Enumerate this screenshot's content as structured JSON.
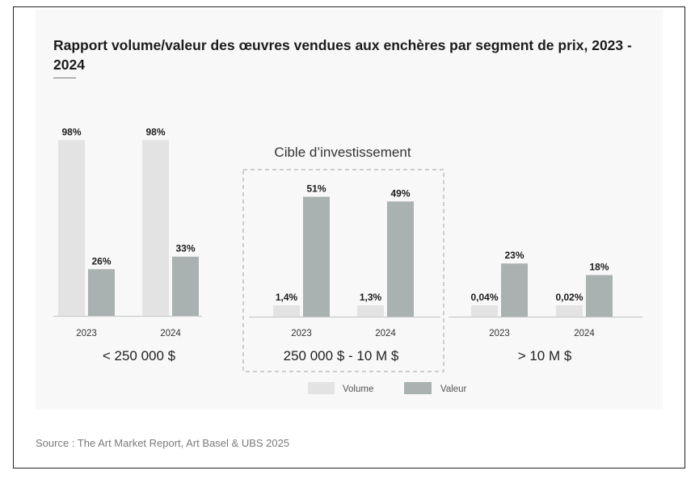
{
  "source": "Source : The Art Market Report, Art Basel & UBS 2025",
  "colors": {
    "volume": "#e3e3e3",
    "valeur": "#a9b1b1",
    "axis": "#c9cccc",
    "text": "#1c1c1c",
    "dashed_box": "#b3b3b3"
  },
  "chart_data": {
    "type": "bar",
    "title": "Rapport volume/valeur des œuvres vendues aux enchères par segment de prix, 2023 - 2024",
    "series_names": [
      "Volume",
      "Valeur"
    ],
    "highlight_label": "Cible d’investissement",
    "groups": [
      {
        "label": "< 250 000 $",
        "years": [
          {
            "year": "2023",
            "volume": 98,
            "volume_label": "98%",
            "valeur": 26,
            "valeur_label": "26%"
          },
          {
            "year": "2024",
            "volume": 98,
            "volume_label": "98%",
            "valeur": 33,
            "valeur_label": "33%"
          }
        ]
      },
      {
        "label": "250 000 $ - 10 M $",
        "highlighted": true,
        "years": [
          {
            "year": "2023",
            "volume": 1.4,
            "volume_label": "1,4%",
            "valeur": 51,
            "valeur_label": "51%"
          },
          {
            "year": "2024",
            "volume": 1.3,
            "volume_label": "1,3%",
            "valeur": 49,
            "valeur_label": "49%"
          }
        ]
      },
      {
        "label": "> 10 M $",
        "years": [
          {
            "year": "2023",
            "volume": 0.04,
            "volume_label": "0,04%",
            "valeur": 23,
            "valeur_label": "23%"
          },
          {
            "year": "2024",
            "volume": 0.02,
            "volume_label": "0,02%",
            "valeur": 18,
            "valeur_label": "18%"
          }
        ]
      }
    ]
  }
}
